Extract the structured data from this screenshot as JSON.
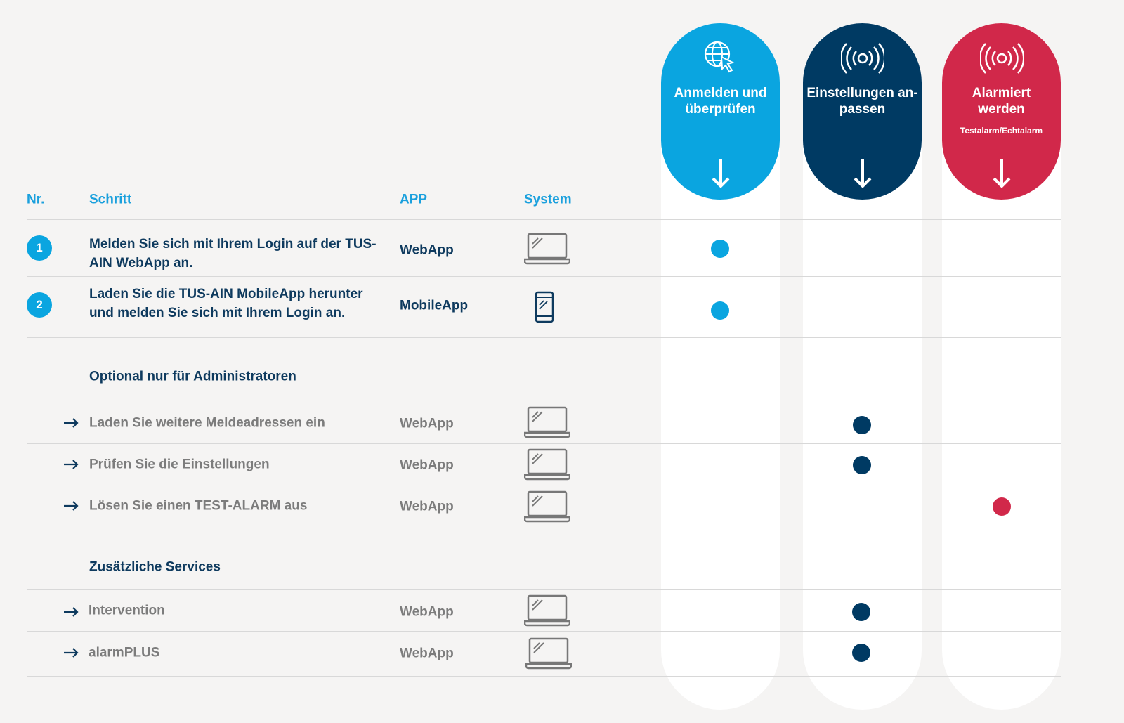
{
  "columns": [
    {
      "title_lines": [
        "Anmelden und",
        "überprüfen"
      ]
    },
    {
      "title_lines": [
        "Einstellungen an-",
        "passen"
      ]
    },
    {
      "title_lines": [
        "Alarmiert",
        "werden"
      ],
      "subtitle": "Testalarm/Echtalarm"
    }
  ],
  "table": {
    "header": [
      "Nr.",
      "Schritt",
      "APP",
      "System"
    ],
    "steps": [
      {
        "number": "1",
        "text": "Melden Sie sich mit Ihrem Login auf der TUS-AIN WebApp an.",
        "app": "WebApp"
      },
      {
        "number": "2",
        "text": "Laden Sie die TUS-AIN MobileApp herunter und melden Sie sich mit Ihrem Login an.",
        "app": "MobileApp"
      }
    ],
    "sections": [
      {
        "title": "Optional nur für Administratoren",
        "rows": [
          {
            "text": "Laden Sie weitere Meldeadressen ein",
            "app": "WebApp"
          },
          {
            "text": "Prüfen Sie die Einstellungen",
            "app": "WebApp"
          },
          {
            "text": "Lösen Sie einen TEST-ALARM aus",
            "app": "WebApp"
          }
        ]
      },
      {
        "title": "Zusätzliche Services",
        "rows": [
          {
            "text": "Intervention",
            "app": "WebApp"
          },
          {
            "text": "alarmPLUS",
            "app": "WebApp"
          }
        ]
      }
    ]
  }
}
